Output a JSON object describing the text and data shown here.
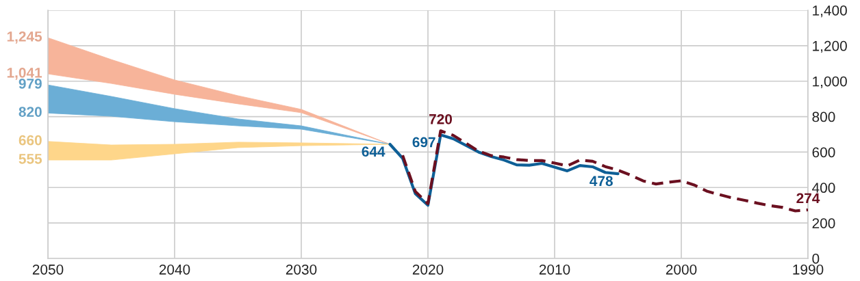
{
  "chart_data": {
    "type": "line",
    "xlim": [
      2050,
      1990
    ],
    "xticks": [
      2050,
      2040,
      2030,
      2020,
      2010,
      2000,
      1990
    ],
    "ylim": [
      0,
      1400
    ],
    "yticks": [
      0,
      200,
      400,
      600,
      800,
      {
        "value": 1000,
        "label": "1,000"
      },
      {
        "value": 1200,
        "label": "1,200"
      },
      {
        "value": 1400,
        "label": "1,400"
      }
    ],
    "grid": true,
    "legend": false,
    "series": [
      {
        "type": "area",
        "color": "#f7b49a",
        "x": [
          2050,
          2045,
          2040,
          2035,
          2030,
          2023
        ],
        "values": [
          null,
          null,
          null,
          null,
          null,
          null
        ],
        "upper": [
          1245,
          1122,
          1007,
          918,
          841,
          644
        ],
        "lower": [
          1041,
          987,
          926,
          872,
          822,
          644
        ]
      },
      {
        "type": "area",
        "color": "#6baed6",
        "x": [
          2050,
          2045,
          2040,
          2035,
          2030,
          2023
        ],
        "values": [
          null,
          null,
          null,
          null,
          null,
          null
        ],
        "upper": [
          979,
          914,
          845,
          787,
          748,
          644
        ],
        "lower": [
          820,
          802,
          771,
          748,
          729,
          644
        ]
      },
      {
        "type": "area",
        "color": "#fed68a",
        "x": [
          2050,
          2045,
          2040,
          2035,
          2030,
          2023
        ],
        "values": [
          null,
          null,
          null,
          null,
          null,
          null
        ],
        "upper": [
          660,
          640,
          644,
          656,
          652,
          644
        ],
        "lower": [
          555,
          555,
          590,
          625,
          636,
          644
        ]
      },
      {
        "color": "#0e5f96",
        "line_style": "solid",
        "x": [
          2023,
          2022,
          2021,
          2020,
          2019,
          2018,
          2017,
          2016,
          2015,
          2014,
          2013,
          2012,
          2011,
          2010,
          2009,
          2008,
          2007,
          2006,
          2005
        ],
        "values": [
          644,
          565,
          366,
          300,
          697,
          675,
          638,
          600,
          575,
          555,
          528,
          526,
          536,
          515,
          494,
          524,
          517,
          485,
          478
        ]
      },
      {
        "color": "#6b1020",
        "line_style": "dashed",
        "x": [
          2022,
          2021,
          2020,
          2019,
          2018,
          2017,
          2016,
          2015,
          2014,
          2013,
          2012,
          2011,
          2010,
          2009,
          2008,
          2007,
          2006,
          2005,
          2004,
          2003,
          2002,
          2001,
          2000,
          1999,
          1998,
          1997,
          1996,
          1995,
          1994,
          1993,
          1992,
          1991,
          1990
        ],
        "values": [
          582,
          378,
          309,
          720,
          694,
          650,
          605,
          580,
          572,
          558,
          552,
          552,
          538,
          522,
          555,
          548,
          518,
          498,
          470,
          437,
          420,
          430,
          438,
          415,
          380,
          360,
          342,
          328,
          312,
          298,
          288,
          268,
          274
        ]
      }
    ],
    "annotations": [
      {
        "text": "1,245",
        "x": 2050,
        "y": 1245
      },
      {
        "text": "1,041",
        "x": 2050,
        "y": 1041
      },
      {
        "text": "979",
        "x": 2050,
        "y": 979
      },
      {
        "text": "820",
        "x": 2050,
        "y": 820
      },
      {
        "text": "660",
        "x": 2050,
        "y": 660
      },
      {
        "text": "555",
        "x": 2050,
        "y": 555
      },
      {
        "text": "644",
        "x": 2023,
        "y": 644
      },
      {
        "text": "697",
        "x": 2019,
        "y": 697
      },
      {
        "text": "720",
        "x": 2019,
        "y": 720
      },
      {
        "text": "478",
        "x": 2005,
        "y": 478
      },
      {
        "text": "274",
        "x": 1990,
        "y": 274
      }
    ]
  }
}
